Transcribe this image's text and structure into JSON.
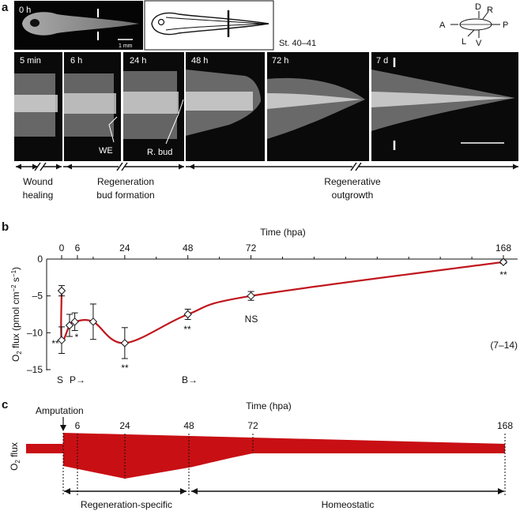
{
  "panel_a": {
    "letter": "a",
    "top_photo_label": "0 h",
    "scale_label": "1 mm",
    "stage_label": "St. 40–41",
    "axis_labels": {
      "A": "A",
      "D": "D",
      "R": "R",
      "P": "P",
      "L": "L",
      "V": "V"
    },
    "frames": [
      "5 min",
      "6 h",
      "24 h",
      "48 h",
      "72 h",
      "7 d"
    ],
    "frame_annotations": {
      "we": "WE",
      "rbud": "R. bud"
    },
    "phase_labels": {
      "wound_healing": [
        "Wound",
        "healing"
      ],
      "bud_formation": [
        "Regeneration",
        "bud formation"
      ],
      "outgrowth": [
        "Regenerative",
        "outgrowth"
      ]
    }
  },
  "panel_b": {
    "letter": "b",
    "n_label": "(7–14)",
    "stage_markers": {
      "s": "S",
      "p": "P→",
      "b": "B→"
    },
    "significance": {
      "t0": "**",
      "t3": "*",
      "t24": "**",
      "t48": "**",
      "t72": "NS",
      "t168": "**"
    }
  },
  "chart_data": {
    "type": "line",
    "title": "",
    "xlabel": "Time (hpa)",
    "ylabel_main": "O",
    "ylabel_sub": "2",
    "ylabel_rest": " flux (pmol cm",
    "ylabel_sup1": "−2",
    "ylabel_s": " s",
    "ylabel_sup2": "−1",
    "ylabel_end": ")",
    "xticks": [
      0,
      6,
      24,
      48,
      72,
      168
    ],
    "yticks": [
      0,
      -5,
      -10,
      -15
    ],
    "ytick_labels": [
      "0",
      "–5",
      "–10",
      "–15"
    ],
    "xlim": [
      0,
      168
    ],
    "ylim": [
      -15,
      0
    ],
    "line_color": "#c0161c",
    "points": [
      {
        "x": 0,
        "y": -4.3,
        "err": 0.7
      },
      {
        "x": 0,
        "y": -11.0,
        "err": 1.8
      },
      {
        "x": 3,
        "y": -9.0,
        "err": 1.5
      },
      {
        "x": 5,
        "y": -8.5,
        "err": 1.2
      },
      {
        "x": 12,
        "y": -8.5,
        "err": 2.4
      },
      {
        "x": 24,
        "y": -11.4,
        "err": 2.1
      },
      {
        "x": 48,
        "y": -7.5,
        "err": 0.7
      },
      {
        "x": 72,
        "y": -5.0,
        "err": 0.6
      },
      {
        "x": 168,
        "y": -0.4,
        "err": 0.2
      }
    ]
  },
  "panel_c": {
    "letter": "c",
    "title": "Time (hpa)",
    "ylabel_main": "O",
    "ylabel_sub": "2",
    "ylabel_rest": " flux",
    "event_label": "Amputation",
    "ticks": [
      "6",
      "24",
      "48",
      "72",
      "168"
    ],
    "phase_specific": "Regeneration-specific",
    "phase_homeostatic": "Homeostatic",
    "fill_color": "#c80f14"
  }
}
